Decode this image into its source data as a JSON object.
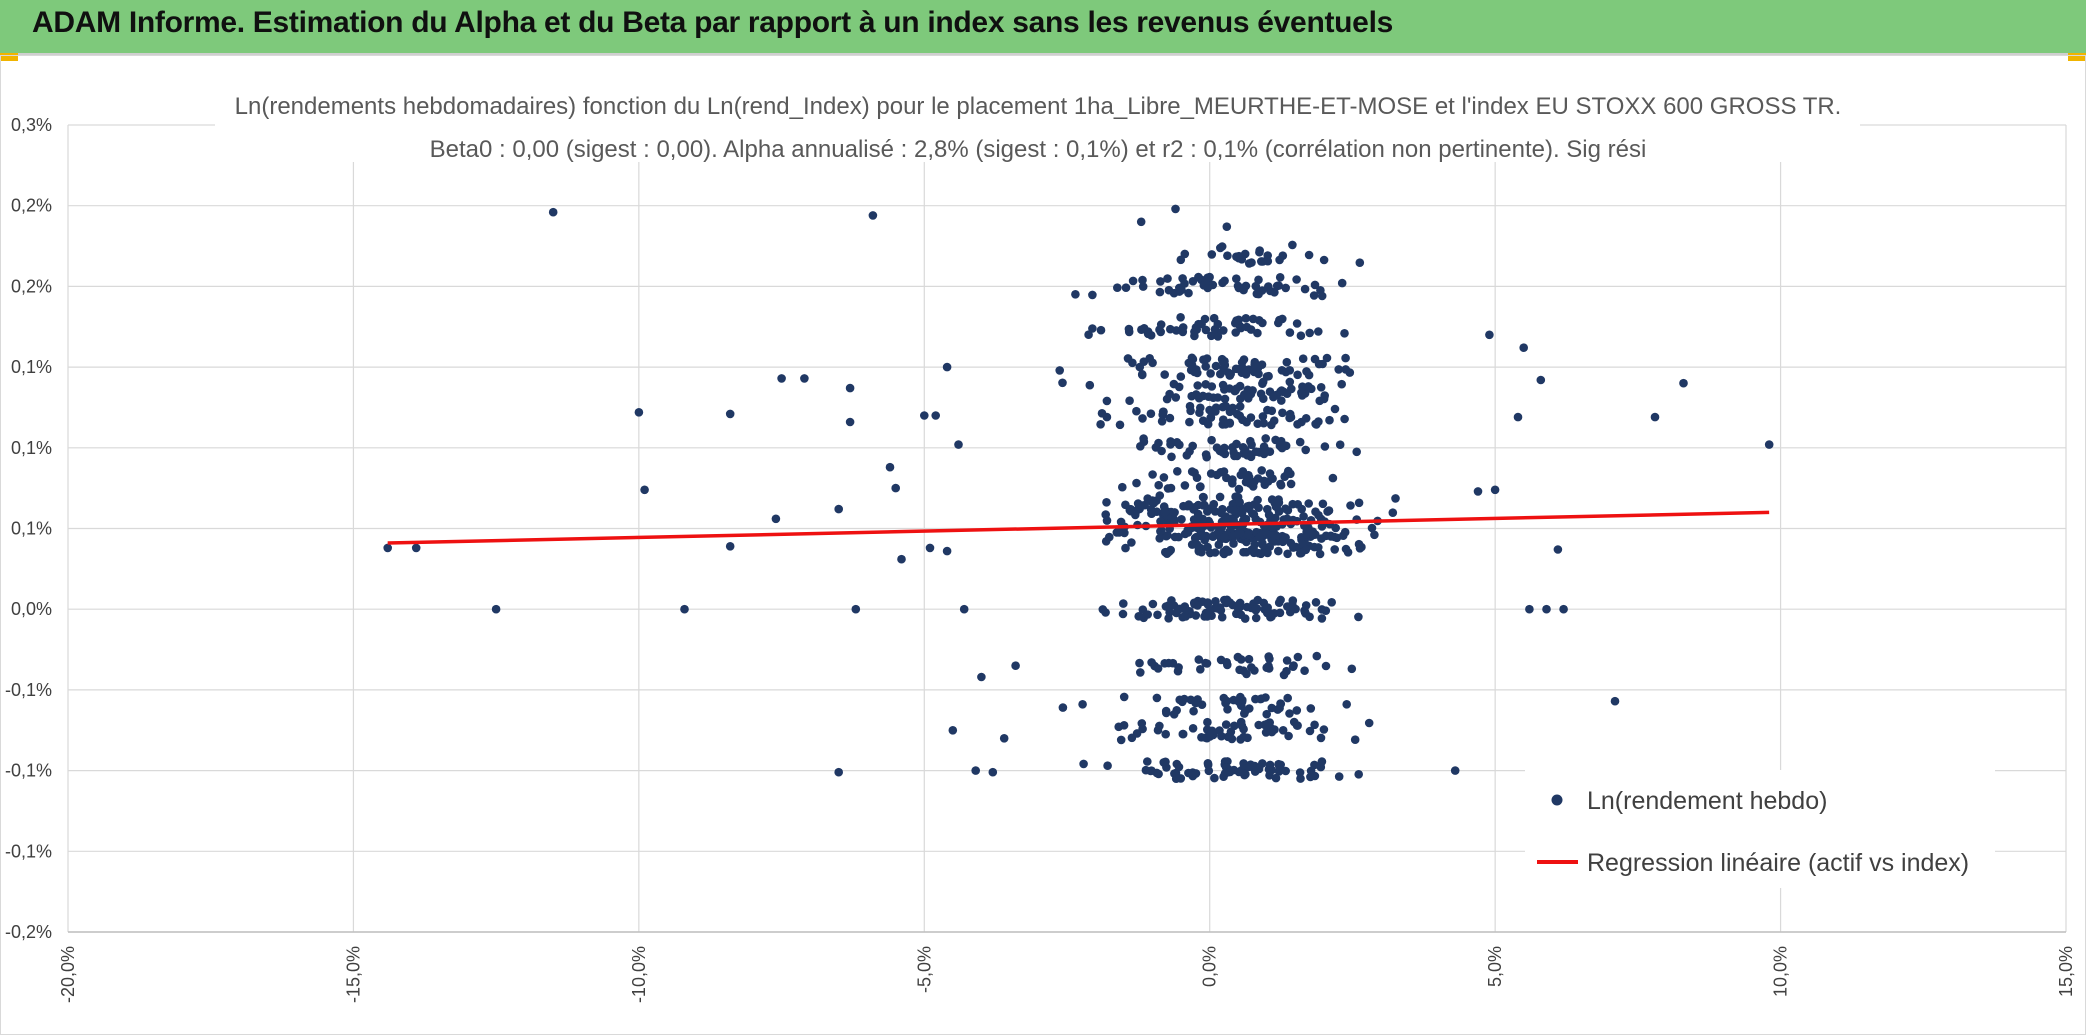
{
  "header": {
    "title": "ADAM Informe. Estimation du Alpha et du Beta par rapport à un index sans les revenus éventuels",
    "background_color": "#7ec97b",
    "accent_color": "#f0b400"
  },
  "chart_data": {
    "type": "scatter",
    "title_line1": "Ln(rendements hebdomadaires) fonction du Ln(rend_Index) pour le placement 1ha_Libre_MEURTHE-ET-MOSE et l'index EU STOXX 600 GROSS TR.",
    "title_line2": "Beta0 : 0,00 (sigest : 0,00). Alpha annualisé : 2,8% (sigest : 0,1%) et r2 : 0,1% (corrélation non pertinente). Sig rési",
    "xlabel": "",
    "ylabel": "",
    "xlim": [
      -20,
      15
    ],
    "ylim": [
      -0.2,
      0.3
    ],
    "x_ticks": [
      {
        "value": -20,
        "label": "-20,0%"
      },
      {
        "value": -15,
        "label": "-15,0%"
      },
      {
        "value": -10,
        "label": "-10,0%"
      },
      {
        "value": -5,
        "label": "-5,0%"
      },
      {
        "value": 0,
        "label": "0,0%"
      },
      {
        "value": 5,
        "label": "5,0%"
      },
      {
        "value": 10,
        "label": "10,0%"
      },
      {
        "value": 15,
        "label": "15,0%"
      }
    ],
    "y_ticks": [
      {
        "value": -0.2,
        "label": "-0,2%"
      },
      {
        "value": -0.15,
        "label": "-0,1%"
      },
      {
        "value": -0.1,
        "label": "-0,1%"
      },
      {
        "value": -0.05,
        "label": "-0,1%"
      },
      {
        "value": 0.0,
        "label": "0,0%"
      },
      {
        "value": 0.05,
        "label": "0,1%"
      },
      {
        "value": 0.1,
        "label": "0,1%"
      },
      {
        "value": 0.15,
        "label": "0,1%"
      },
      {
        "value": 0.2,
        "label": "0,2%"
      },
      {
        "value": 0.25,
        "label": "0,2%"
      },
      {
        "value": 0.3,
        "label": "0,3%"
      }
    ],
    "grid": true,
    "legend_position": "bottom-right",
    "series": [
      {
        "name": "Ln(rendement hebdo)",
        "kind": "scatter",
        "color": "#203864",
        "levels": [
          -0.1,
          -0.075,
          -0.06,
          -0.035,
          0.0,
          0.04,
          0.05,
          0.06,
          0.065,
          0.08,
          0.1,
          0.12,
          0.135,
          0.15,
          0.175,
          0.2,
          0.22
        ],
        "points": [
          [
            -11.5,
            0.246
          ],
          [
            -5.9,
            0.244
          ],
          [
            -0.6,
            0.248
          ],
          [
            0.3,
            0.237
          ],
          [
            -1.2,
            0.24
          ],
          [
            -10.0,
            0.122
          ],
          [
            -8.4,
            0.121
          ],
          [
            -9.9,
            0.074
          ],
          [
            -12.5,
            0.0
          ],
          [
            -7.5,
            0.143
          ],
          [
            -7.1,
            0.143
          ],
          [
            -6.3,
            0.137
          ],
          [
            -6.3,
            0.116
          ],
          [
            -5.6,
            0.088
          ],
          [
            -5.5,
            0.075
          ],
          [
            -6.5,
            0.062
          ],
          [
            -7.6,
            0.056
          ],
          [
            -5.0,
            0.12
          ],
          [
            -4.8,
            0.12
          ],
          [
            -4.6,
            0.15
          ],
          [
            -4.4,
            0.102
          ],
          [
            -5.4,
            0.031
          ],
          [
            -4.9,
            0.038
          ],
          [
            -4.6,
            0.036
          ],
          [
            -8.4,
            0.039
          ],
          [
            -14.4,
            0.038
          ],
          [
            -13.9,
            0.038
          ],
          [
            -9.2,
            0.0
          ],
          [
            -6.2,
            0.0
          ],
          [
            -4.3,
            0.0
          ],
          [
            -6.5,
            -0.101
          ],
          [
            -4.1,
            -0.1
          ],
          [
            -3.8,
            -0.101
          ],
          [
            -4.5,
            -0.075
          ],
          [
            -3.6,
            -0.08
          ],
          [
            -4.0,
            -0.042
          ],
          [
            -3.4,
            -0.035
          ],
          [
            4.9,
            0.17
          ],
          [
            5.5,
            0.162
          ],
          [
            5.8,
            0.142
          ],
          [
            6.2,
            0.0
          ],
          [
            5.9,
            0.0
          ],
          [
            7.1,
            -0.057
          ],
          [
            8.3,
            0.14
          ],
          [
            7.8,
            0.119
          ],
          [
            9.8,
            0.102
          ],
          [
            6.1,
            0.037
          ],
          [
            5.0,
            0.074
          ],
          [
            4.7,
            0.073
          ],
          [
            4.3,
            -0.1
          ],
          [
            5.4,
            0.119
          ],
          [
            5.6,
            0.0
          ]
        ]
      },
      {
        "name": "Regression linéaire (actif vs index)",
        "kind": "line",
        "color": "#ee1111",
        "x": [
          -14.4,
          9.8
        ],
        "y": [
          0.041,
          0.06
        ]
      }
    ]
  }
}
